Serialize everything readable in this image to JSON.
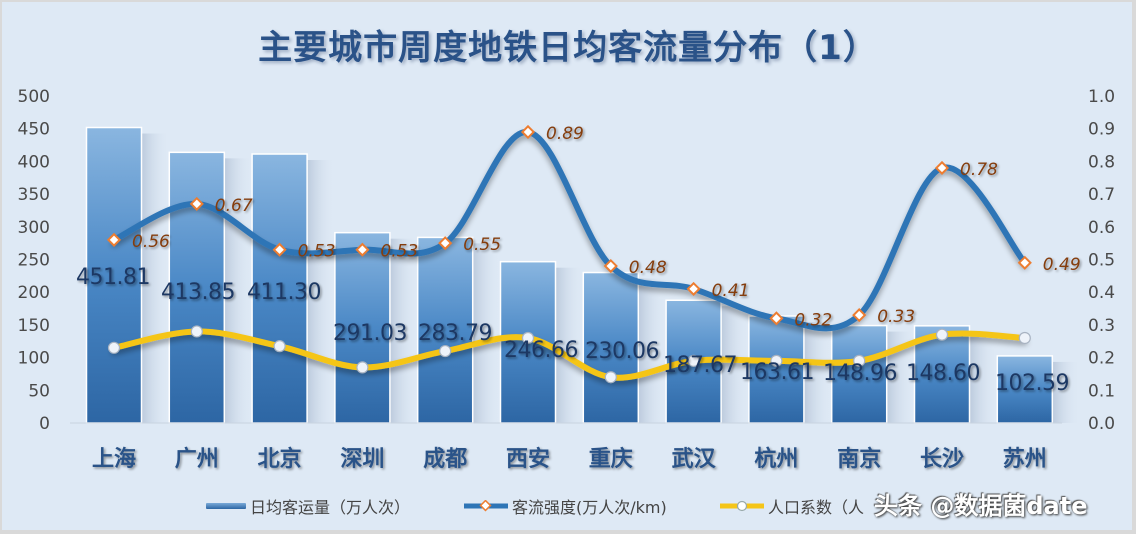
{
  "title": "主要城市周度地铁日均客流量分布（1）",
  "chart_data": {
    "type": "bar+line",
    "title": "主要城市周度地铁日均客流量分布（1）",
    "categories": [
      "上海",
      "广州",
      "北京",
      "深圳",
      "成都",
      "西安",
      "重庆",
      "武汉",
      "杭州",
      "南京",
      "长沙",
      "苏州"
    ],
    "series": [
      {
        "name": "日均客运量（万人次）",
        "type": "bar",
        "axis": "left",
        "color": "#3a78b8",
        "values": [
          451.81,
          413.85,
          411.3,
          291.03,
          283.79,
          246.66,
          230.06,
          187.67,
          163.61,
          148.96,
          148.6,
          102.59
        ],
        "labels": [
          "451.81",
          "413.85",
          "411.30",
          "291.03",
          "283.79",
          "246.66",
          "230.06",
          "187.67",
          "163.61",
          "148.96",
          "148.60",
          "102.59"
        ]
      },
      {
        "name": "客流强度(万人次/km)",
        "type": "line",
        "axis": "right",
        "color": "#2e75b6",
        "marker_color": "#ed7d31",
        "values": [
          0.56,
          0.67,
          0.53,
          0.53,
          0.55,
          0.89,
          0.48,
          0.41,
          0.32,
          0.33,
          0.78,
          0.49
        ],
        "labels": [
          "0.56",
          "0.67",
          "0.53",
          "0.53",
          "0.55",
          "0.89",
          "0.48",
          "0.41",
          "0.32",
          "0.33",
          "0.78",
          "0.49"
        ]
      },
      {
        "name": "人口系数（人",
        "type": "line",
        "axis": "right",
        "color": "#f5c518",
        "values": [
          0.23,
          0.28,
          0.235,
          0.17,
          0.22,
          0.26,
          0.14,
          0.19,
          0.19,
          0.19,
          0.27,
          0.26
        ]
      }
    ],
    "y_left": {
      "min": 0,
      "max": 500,
      "step": 50,
      "ticks": [
        "0",
        "50",
        "100",
        "150",
        "200",
        "250",
        "300",
        "350",
        "400",
        "450",
        "500"
      ]
    },
    "y_right": {
      "min": 0,
      "max": 1.0,
      "step": 0.1,
      "ticks": [
        "0.0",
        "0.1",
        "0.2",
        "0.3",
        "0.4",
        "0.5",
        "0.6",
        "0.7",
        "0.8",
        "0.9",
        "1.0"
      ]
    },
    "grid": false,
    "legend_position": "bottom"
  },
  "legend": {
    "bar_label": "日均客运量（万人次）",
    "line1_label": "客流强度(万人次/km)",
    "line2_label": "人口系数（人"
  },
  "watermark": "头条 @数据菌date"
}
